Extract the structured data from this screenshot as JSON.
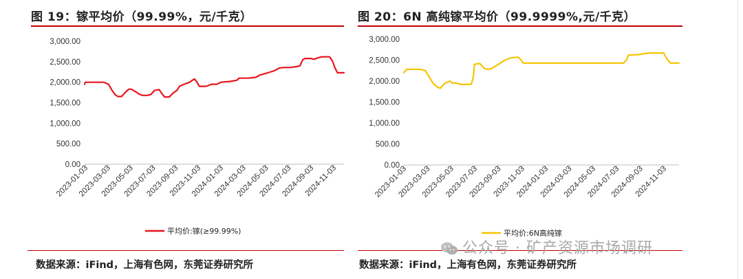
{
  "charts": [
    {
      "title": "图 19：镓平均价（99.99%，元/千克）",
      "source": "数据来源：iFind，上海有色网，东莞证券研究所"
    },
    {
      "title": "图 20：6N 高纯镓平均价（99.9999%,元/千克）",
      "source": "数据来源：iFind，上海有色网，东莞证券研究所"
    }
  ],
  "watermark": "公众号 · 矿产资源市场调研",
  "chart_data": [
    {
      "type": "line",
      "title": "图 19：镓平均价（99.99%，元/千克）",
      "xlabel": "",
      "ylabel": "",
      "ylim": [
        0,
        3000
      ],
      "y_ticks": [
        "3,000.00",
        "2,500.00",
        "2,000.00",
        "1,500.00",
        "1,000.00",
        "500.00",
        "0.00"
      ],
      "x_ticks": [
        "2023-01-03",
        "2023-03-03",
        "2023-05-03",
        "2023-07-03",
        "2023-09-03",
        "2023-11-03",
        "2024-01-03",
        "2024-03-03",
        "2024-05-03",
        "2024-07-03",
        "2024-09-03",
        "2024-11-03"
      ],
      "legend": "bottom",
      "grid": false,
      "color": "#e8141c",
      "series": [
        {
          "name": "平均价:镓(≥99.99%)",
          "points": [
            [
              "2023-01-03",
              1950
            ],
            [
              "2023-01-05",
              2000
            ],
            [
              "2023-02-10",
              2000
            ],
            [
              "2023-02-25",
              2000
            ],
            [
              "2023-03-10",
              1950
            ],
            [
              "2023-03-20",
              1800
            ],
            [
              "2023-03-28",
              1700
            ],
            [
              "2023-04-05",
              1650
            ],
            [
              "2023-04-15",
              1650
            ],
            [
              "2023-04-25",
              1750
            ],
            [
              "2023-05-05",
              1830
            ],
            [
              "2023-05-12",
              1830
            ],
            [
              "2023-05-22",
              1780
            ],
            [
              "2023-06-01",
              1720
            ],
            [
              "2023-06-12",
              1680
            ],
            [
              "2023-06-25",
              1680
            ],
            [
              "2023-07-05",
              1700
            ],
            [
              "2023-07-15",
              1800
            ],
            [
              "2023-07-28",
              1820
            ],
            [
              "2023-08-05",
              1720
            ],
            [
              "2023-08-12",
              1640
            ],
            [
              "2023-08-25",
              1640
            ],
            [
              "2023-09-05",
              1740
            ],
            [
              "2023-09-15",
              1800
            ],
            [
              "2023-09-22",
              1900
            ],
            [
              "2023-10-05",
              1950
            ],
            [
              "2023-10-20",
              2000
            ],
            [
              "2023-10-28",
              2050
            ],
            [
              "2023-11-03",
              2080
            ],
            [
              "2023-11-10",
              2000
            ],
            [
              "2023-11-16",
              1900
            ],
            [
              "2023-12-05",
              1900
            ],
            [
              "2023-12-20",
              1950
            ],
            [
              "2024-01-03",
              1950
            ],
            [
              "2024-01-15",
              2000
            ],
            [
              "2024-02-10",
              2020
            ],
            [
              "2024-02-28",
              2050
            ],
            [
              "2024-03-05",
              2100
            ],
            [
              "2024-03-12",
              2100
            ],
            [
              "2024-04-01",
              2100
            ],
            [
              "2024-04-20",
              2120
            ],
            [
              "2024-05-03",
              2180
            ],
            [
              "2024-05-20",
              2220
            ],
            [
              "2024-06-10",
              2280
            ],
            [
              "2024-06-25",
              2350
            ],
            [
              "2024-07-10",
              2360
            ],
            [
              "2024-07-25",
              2360
            ],
            [
              "2024-08-10",
              2380
            ],
            [
              "2024-08-20",
              2400
            ],
            [
              "2024-08-28",
              2550
            ],
            [
              "2024-09-03",
              2580
            ],
            [
              "2024-09-20",
              2580
            ],
            [
              "2024-09-28",
              2560
            ],
            [
              "2024-10-10",
              2600
            ],
            [
              "2024-10-20",
              2620
            ],
            [
              "2024-11-10",
              2620
            ],
            [
              "2024-11-18",
              2520
            ],
            [
              "2024-11-25",
              2350
            ],
            [
              "2024-12-02",
              2230
            ],
            [
              "2024-12-20",
              2230
            ]
          ]
        }
      ]
    },
    {
      "type": "line",
      "title": "图 20：6N 高纯镓平均价（99.9999%,元/千克）",
      "xlabel": "",
      "ylabel": "",
      "ylim": [
        0,
        3000
      ],
      "y_ticks": [
        "3,000.00",
        "2,500.00",
        "2,000.00",
        "1,500.00",
        "1,000.00",
        "500.00",
        "0.00"
      ],
      "x_ticks": [
        "2023-01-03",
        "2023-03-03",
        "2023-05-03",
        "2023-07-03",
        "2023-09-03",
        "2023-11-03",
        "2024-01-03",
        "2024-03-03",
        "2024-05-03",
        "2024-07-03",
        "2024-09-03",
        "2024-11-03"
      ],
      "legend": "bottom",
      "grid": false,
      "color": "#f5c400",
      "series": [
        {
          "name": "平均价:6N高纯镓",
          "points": [
            [
              "2023-01-03",
              2200
            ],
            [
              "2023-01-10",
              2280
            ],
            [
              "2023-02-15",
              2280
            ],
            [
              "2023-02-28",
              2250
            ],
            [
              "2023-03-10",
              2100
            ],
            [
              "2023-03-20",
              1950
            ],
            [
              "2023-04-01",
              1850
            ],
            [
              "2023-04-08",
              1830
            ],
            [
              "2023-04-20",
              1950
            ],
            [
              "2023-05-03",
              2000
            ],
            [
              "2023-05-10",
              1950
            ],
            [
              "2023-05-20",
              1950
            ],
            [
              "2023-06-01",
              1920
            ],
            [
              "2023-06-20",
              1920
            ],
            [
              "2023-06-28",
              1930
            ],
            [
              "2023-07-03",
              2100
            ],
            [
              "2023-07-06",
              2400
            ],
            [
              "2023-07-20",
              2420
            ],
            [
              "2023-08-01",
              2300
            ],
            [
              "2023-08-10",
              2280
            ],
            [
              "2023-08-20",
              2300
            ],
            [
              "2023-09-03",
              2380
            ],
            [
              "2023-09-20",
              2480
            ],
            [
              "2023-10-03",
              2540
            ],
            [
              "2023-10-15",
              2560
            ],
            [
              "2023-10-28",
              2570
            ],
            [
              "2023-11-05",
              2500
            ],
            [
              "2023-11-10",
              2430
            ],
            [
              "2024-02-01",
              2430
            ],
            [
              "2024-05-01",
              2430
            ],
            [
              "2024-07-28",
              2430
            ],
            [
              "2024-08-05",
              2500
            ],
            [
              "2024-08-10",
              2620
            ],
            [
              "2024-09-03",
              2630
            ],
            [
              "2024-10-03",
              2670
            ],
            [
              "2024-11-10",
              2670
            ],
            [
              "2024-11-20",
              2500
            ],
            [
              "2024-11-28",
              2430
            ],
            [
              "2024-12-20",
              2430
            ]
          ]
        }
      ]
    }
  ]
}
